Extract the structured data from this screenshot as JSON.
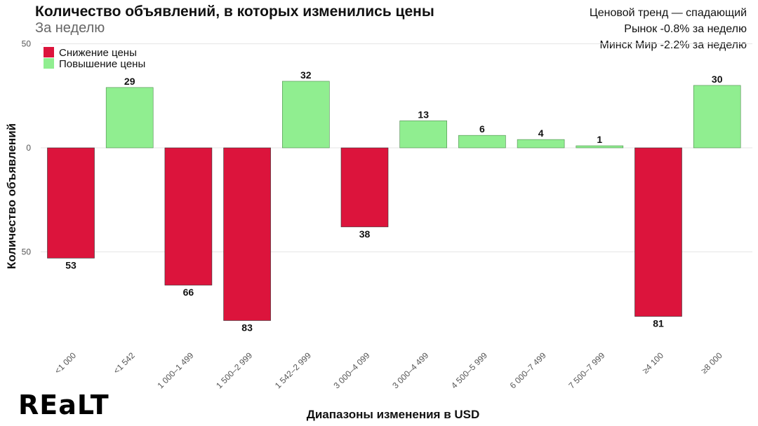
{
  "header": {
    "title": "Количество объявлений, в которых изменились цены",
    "subtitle": "За неделю",
    "notes": [
      "Ценовой тренд — спадающий",
      "Рынок -0.8% за неделю",
      "Минск Мир -2.2% за неделю"
    ]
  },
  "logo": "REALT",
  "colors": {
    "decrease": "#DC143C",
    "increase": "#90EE90",
    "grid": "#E5E5E5"
  },
  "chart_data": {
    "type": "bar",
    "title": "Количество объявлений, в которых изменились цены",
    "subtitle": "За неделю",
    "xlabel": "Диапазоны изменения в USD",
    "ylabel": "Количество объявлений",
    "ylim": [
      -90,
      50
    ],
    "yticks": [
      50,
      0,
      -50
    ],
    "ytick_labels": [
      "50",
      "0",
      "50"
    ],
    "legend": {
      "placement": "top-left",
      "entries": [
        "Снижение цены",
        "Повышение цены"
      ]
    },
    "categories": [
      "<1 000",
      "<1 542",
      "1 000–1 499",
      "1 500–2 999",
      "1 542–2 999",
      "3 000–4 099",
      "3 000–4 499",
      "4 500–5 999",
      "6 000–7 499",
      "7 500–7 999",
      "≥4 100",
      "≥8 000"
    ],
    "values": [
      -53,
      29,
      -66,
      -83,
      32,
      -38,
      13,
      6,
      4,
      1,
      -81,
      30
    ],
    "labels": [
      "53",
      "29",
      "66",
      "83",
      "32",
      "38",
      "13",
      "6",
      "4",
      "1",
      "81",
      "30"
    ],
    "series_by_sign": {
      "negative": "Снижение цены",
      "positive": "Повышение цены"
    }
  }
}
